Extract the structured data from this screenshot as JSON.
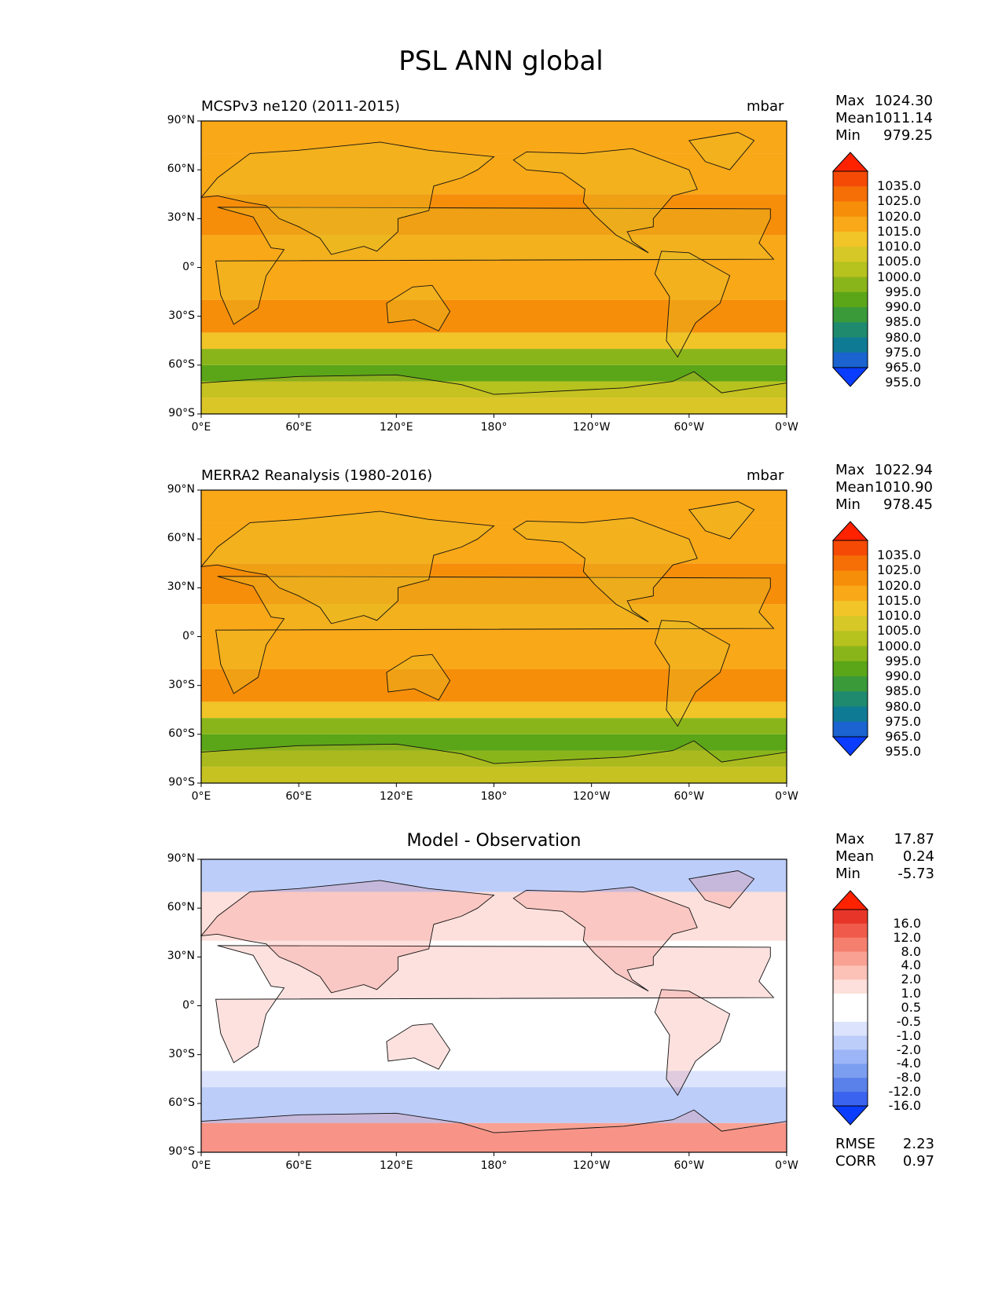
{
  "title": "PSL ANN global",
  "colors": {
    "abs": [
      "#0a3dff",
      "#1a63d0",
      "#0f7a94",
      "#1f8a6e",
      "#3a9a3a",
      "#5aa618",
      "#8ab51a",
      "#b6c21e",
      "#d6c827",
      "#f1c428",
      "#f9a818",
      "#f68e0a",
      "#f56e06",
      "#f54a06",
      "#ff2200"
    ],
    "diff": [
      "#0a3dff",
      "#3a63f0",
      "#5a80ea",
      "#7c9ef0",
      "#9cb5f6",
      "#bccdfa",
      "#dce4fd",
      "#ffffff",
      "#ffffff",
      "#fde0dc",
      "#fcc2b8",
      "#f9a294",
      "#f57f6f",
      "#f05a4b",
      "#e8352a",
      "#ff2200"
    ]
  },
  "panels": [
    {
      "title": "MCSPv3 ne120 (2011-2015)",
      "units": "mbar",
      "stats": {
        "max_label": "Max",
        "max": "1024.30",
        "mean_label": "Mean",
        "mean": "1011.14",
        "min_label": "Min",
        "min": "979.25"
      }
    },
    {
      "title": "MERRA2 Reanalysis (1980-2016)",
      "units": "mbar",
      "stats": {
        "max_label": "Max",
        "max": "1022.94",
        "mean_label": "Mean",
        "mean": "1010.90",
        "min_label": "Min",
        "min": "978.45"
      }
    },
    {
      "title": "Model - Observation",
      "units": "",
      "stats": {
        "max_label": "Max",
        "max": "17.87",
        "mean_label": "Mean",
        "mean": "0.24",
        "min_label": "Min",
        "min": "-5.73"
      },
      "extra": {
        "rmse_label": "RMSE",
        "rmse": "2.23",
        "corr_label": "CORR",
        "corr": "0.97"
      }
    }
  ],
  "lat_ticks": [
    "90°N",
    "60°N",
    "30°N",
    "0°",
    "30°S",
    "60°S",
    "90°S"
  ],
  "lon_ticks": [
    "0°E",
    "60°E",
    "120°E",
    "180°",
    "120°W",
    "60°W",
    "0°W"
  ],
  "colorbar_abs_ticks": [
    "1035.0",
    "1025.0",
    "1020.0",
    "1015.0",
    "1010.0",
    "1005.0",
    "1000.0",
    "995.0",
    "990.0",
    "985.0",
    "980.0",
    "975.0",
    "965.0",
    "955.0"
  ],
  "colorbar_diff_ticks": [
    "16.0",
    "12.0",
    "8.0",
    "4.0",
    "2.0",
    "1.0",
    "0.5",
    "-0.5",
    "-1.0",
    "-2.0",
    "-4.0",
    "-8.0",
    "-12.0",
    "-16.0"
  ],
  "chart_data": [
    {
      "type": "heatmap",
      "title": "MCSPv3 ne120 (2011-2015)",
      "units": "mbar",
      "xlabel": "",
      "ylabel": "",
      "xlim": [
        0,
        360
      ],
      "ylim": [
        -90,
        90
      ],
      "levels": [
        955,
        965,
        975,
        980,
        985,
        990,
        995,
        1000,
        1005,
        1010,
        1015,
        1020,
        1025,
        1035
      ],
      "features": [
        {
          "lat_range": [
            -90,
            -80
          ],
          "value": 1000
        },
        {
          "lat_range": [
            -80,
            -70
          ],
          "value": 995
        },
        {
          "lat_range": [
            -70,
            -60
          ],
          "value": 985
        },
        {
          "lat_range": [
            -60,
            -50
          ],
          "value": 993
        },
        {
          "lat_range": [
            -50,
            -40
          ],
          "value": 1008
        },
        {
          "lat_range": [
            -40,
            -20
          ],
          "value": 1017
        },
        {
          "lat_range": [
            -20,
            20
          ],
          "value": 1011
        },
        {
          "lat_range": [
            20,
            45
          ],
          "value": 1017
        },
        {
          "lat_range": [
            45,
            70
          ],
          "value": 1013
        },
        {
          "lat_range": [
            70,
            90
          ],
          "value": 1014
        }
      ],
      "stats": {
        "max": 1024.3,
        "mean": 1011.14,
        "min": 979.25
      }
    },
    {
      "type": "heatmap",
      "title": "MERRA2 Reanalysis (1980-2016)",
      "units": "mbar",
      "xlabel": "",
      "ylabel": "",
      "xlim": [
        0,
        360
      ],
      "ylim": [
        -90,
        90
      ],
      "levels": [
        955,
        965,
        975,
        980,
        985,
        990,
        995,
        1000,
        1005,
        1010,
        1015,
        1020,
        1025,
        1035
      ],
      "features": [
        {
          "lat_range": [
            -90,
            -80
          ],
          "value": 997
        },
        {
          "lat_range": [
            -80,
            -70
          ],
          "value": 992
        },
        {
          "lat_range": [
            -70,
            -60
          ],
          "value": 986
        },
        {
          "lat_range": [
            -60,
            -50
          ],
          "value": 994
        },
        {
          "lat_range": [
            -50,
            -40
          ],
          "value": 1008
        },
        {
          "lat_range": [
            -40,
            -20
          ],
          "value": 1016
        },
        {
          "lat_range": [
            -20,
            20
          ],
          "value": 1011
        },
        {
          "lat_range": [
            20,
            45
          ],
          "value": 1016
        },
        {
          "lat_range": [
            45,
            70
          ],
          "value": 1013
        },
        {
          "lat_range": [
            70,
            90
          ],
          "value": 1014
        }
      ],
      "stats": {
        "max": 1022.94,
        "mean": 1010.9,
        "min": 978.45
      }
    },
    {
      "type": "heatmap",
      "title": "Model - Observation",
      "xlabel": "",
      "ylabel": "",
      "xlim": [
        0,
        360
      ],
      "ylim": [
        -90,
        90
      ],
      "levels": [
        -16,
        -12,
        -8,
        -4,
        -2,
        -1,
        -0.5,
        0.5,
        1,
        2,
        4,
        8,
        12,
        16
      ],
      "features": [
        {
          "lat_range": [
            -90,
            -72
          ],
          "value": 4
        },
        {
          "lat_range": [
            -72,
            -50
          ],
          "value": -2
        },
        {
          "lat_range": [
            -50,
            -40
          ],
          "value": -1
        },
        {
          "lat_range": [
            -40,
            40
          ],
          "value": 0
        },
        {
          "lat_range": [
            40,
            70
          ],
          "value": 1
        },
        {
          "lat_range": [
            70,
            90
          ],
          "value": -1.5
        }
      ],
      "stats": {
        "max": 17.87,
        "mean": 0.24,
        "min": -5.73,
        "rmse": 2.23,
        "corr": 0.97
      }
    }
  ]
}
